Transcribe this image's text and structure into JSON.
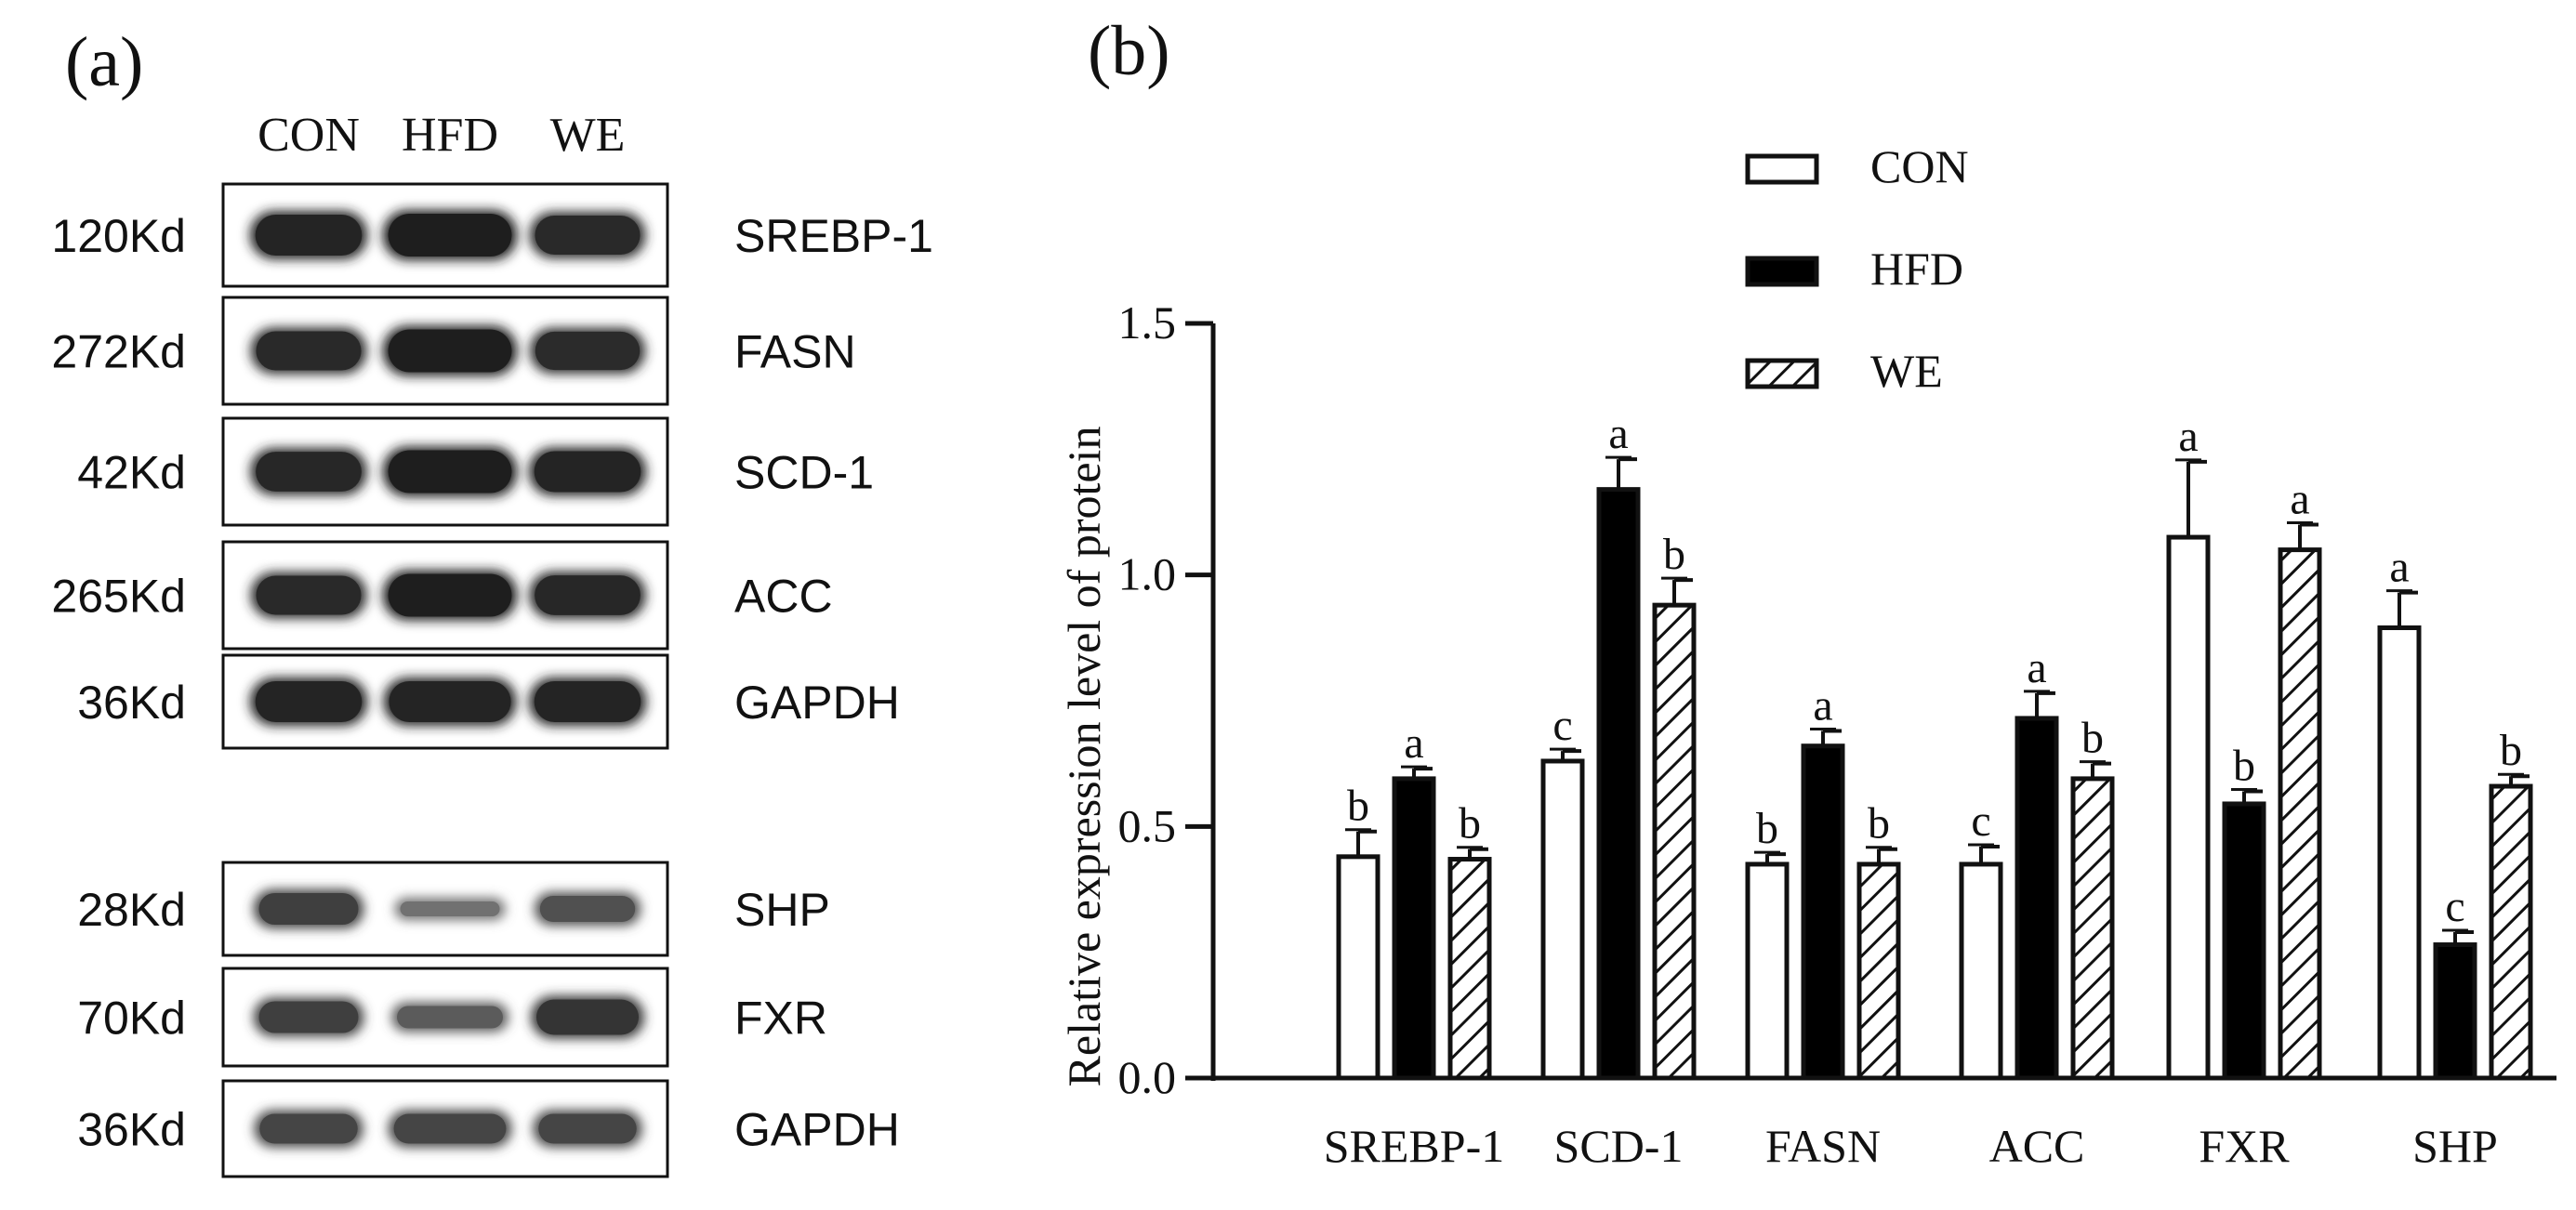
{
  "panel_a": {
    "label": "(a)",
    "lane_labels": [
      "CON",
      "HFD",
      "WE"
    ],
    "blots": [
      {
        "kd": "120Kd",
        "protein": "SREBP-1",
        "intensity": [
          0.95,
          1.0,
          0.9
        ]
      },
      {
        "kd": "272Kd",
        "protein": "FASN",
        "intensity": [
          0.9,
          1.0,
          0.88
        ]
      },
      {
        "kd": "42Kd",
        "protein": "SCD-1",
        "intensity": [
          0.92,
          1.0,
          0.95
        ]
      },
      {
        "kd": "265Kd",
        "protein": "ACC",
        "intensity": [
          0.9,
          1.0,
          0.92
        ]
      },
      {
        "kd": "36Kd",
        "protein": "GAPDH",
        "intensity": [
          0.95,
          0.95,
          0.95
        ]
      },
      {
        "kd": "28Kd",
        "protein": "SHP",
        "intensity": [
          0.7,
          0.25,
          0.55
        ]
      },
      {
        "kd": "70Kd",
        "protein": "FXR",
        "intensity": [
          0.7,
          0.45,
          0.8
        ]
      },
      {
        "kd": "36Kd",
        "protein": "GAPDH",
        "intensity": [
          0.65,
          0.65,
          0.65
        ]
      }
    ]
  },
  "chart_data": {
    "panel_label": "(b)",
    "type": "bar",
    "title": "",
    "xlabel": "",
    "ylabel": "Relative expression level of protein",
    "ylim": [
      0,
      1.5
    ],
    "yticks": [
      "0.0",
      "0.5",
      "1.0",
      "1.5"
    ],
    "legend_position": "top-center",
    "categories": [
      "SREBP-1",
      "SCD-1",
      "FASN",
      "ACC",
      "FXR",
      "SHP"
    ],
    "series": [
      {
        "name": "CON",
        "style": "open",
        "values": [
          0.44,
          0.63,
          0.425,
          0.425,
          1.075,
          0.895
        ],
        "errors": [
          0.05,
          0.02,
          0.02,
          0.035,
          0.15,
          0.07
        ],
        "letters": [
          "b",
          "c",
          "b",
          "c",
          "a",
          "a"
        ]
      },
      {
        "name": "HFD",
        "style": "filled",
        "values": [
          0.595,
          1.17,
          0.66,
          0.715,
          0.545,
          0.265
        ],
        "errors": [
          0.02,
          0.06,
          0.03,
          0.05,
          0.025,
          0.025
        ],
        "letters": [
          "a",
          "a",
          "a",
          "a",
          "b",
          "c"
        ]
      },
      {
        "name": "WE",
        "style": "hatched",
        "values": [
          0.435,
          0.94,
          0.425,
          0.595,
          1.05,
          0.58
        ],
        "errors": [
          0.02,
          0.05,
          0.03,
          0.03,
          0.05,
          0.02
        ],
        "letters": [
          "b",
          "b",
          "b",
          "b",
          "a",
          "b"
        ]
      }
    ]
  }
}
